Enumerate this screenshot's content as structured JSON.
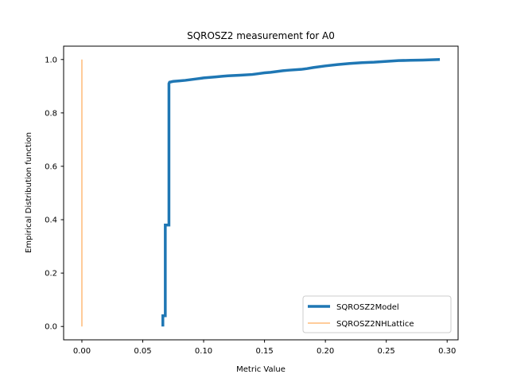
{
  "chart_data": {
    "type": "line",
    "title": "SQROSZ2 measurement for A0",
    "xlabel": "Metric Value",
    "ylabel": "Empirical Distribution function",
    "xlim": [
      -0.015,
      0.309
    ],
    "ylim": [
      -0.05,
      1.05
    ],
    "xticks": [
      0.0,
      0.05,
      0.1,
      0.15,
      0.2,
      0.25,
      0.3
    ],
    "xtick_labels": [
      "0.00",
      "0.05",
      "0.10",
      "0.15",
      "0.20",
      "0.25",
      "0.30"
    ],
    "yticks": [
      0.0,
      0.2,
      0.4,
      0.6,
      0.8,
      1.0
    ],
    "ytick_labels": [
      "0.0",
      "0.2",
      "0.4",
      "0.6",
      "0.8",
      "1.0"
    ],
    "grid": false,
    "legend_position": "lower-right",
    "series": [
      {
        "name": "SQROSZ2Model",
        "color": "#1f77b4",
        "line_width": "thick",
        "x": [
          0.0665,
          0.0665,
          0.0685,
          0.0685,
          0.0695,
          0.0695,
          0.0715,
          0.0715,
          0.072,
          0.075,
          0.08,
          0.085,
          0.09,
          0.095,
          0.1,
          0.105,
          0.11,
          0.115,
          0.12,
          0.13,
          0.14,
          0.145,
          0.15,
          0.155,
          0.16,
          0.165,
          0.17,
          0.18,
          0.185,
          0.19,
          0.2,
          0.21,
          0.22,
          0.23,
          0.24,
          0.25,
          0.26,
          0.27,
          0.28,
          0.294
        ],
        "y": [
          0.0,
          0.04,
          0.04,
          0.38,
          0.38,
          0.38,
          0.38,
          0.91,
          0.915,
          0.918,
          0.92,
          0.922,
          0.925,
          0.928,
          0.931,
          0.933,
          0.935,
          0.937,
          0.939,
          0.941,
          0.944,
          0.947,
          0.95,
          0.952,
          0.955,
          0.958,
          0.96,
          0.963,
          0.966,
          0.97,
          0.976,
          0.981,
          0.985,
          0.988,
          0.99,
          0.993,
          0.996,
          0.997,
          0.998,
          1.0
        ]
      },
      {
        "name": "SQROSZ2NHLattice",
        "color": "#ffbb78",
        "line_width": "thin",
        "x": [
          0.0,
          0.0
        ],
        "y": [
          0.0,
          1.0
        ]
      }
    ]
  }
}
